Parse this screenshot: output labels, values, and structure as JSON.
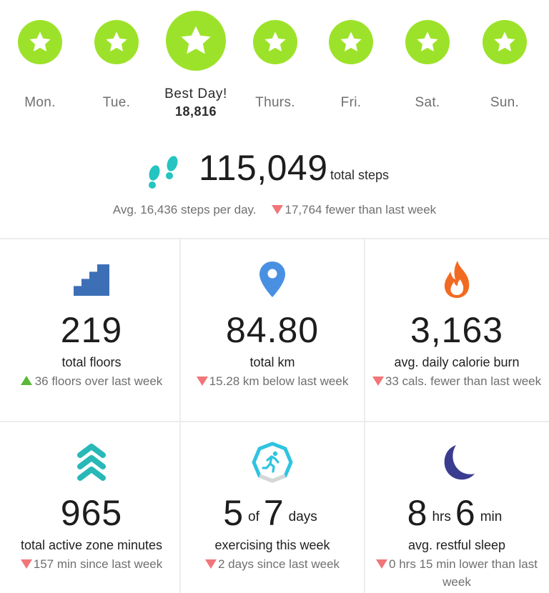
{
  "week": [
    {
      "name": "Mon.",
      "badge": "star-icon"
    },
    {
      "name": "Tue.",
      "badge": "star-icon"
    },
    {
      "name": "Best Day!",
      "value": "18,816",
      "badge": "star-icon",
      "best": true
    },
    {
      "name": "Thurs.",
      "badge": "star-icon"
    },
    {
      "name": "Fri.",
      "badge": "star-icon"
    },
    {
      "name": "Sat.",
      "badge": "star-icon"
    },
    {
      "name": "Sun.",
      "badge": "star-icon"
    }
  ],
  "colors": {
    "badge": "#9de22a",
    "down": "#f0767a",
    "up": "#5ab83a",
    "steps": "#24c4c0",
    "floors": "#3d6fb6",
    "location": "#4a90e2",
    "flame": "#f26a22",
    "azm": "#28b8b8",
    "exercise": "#2fc4e0",
    "sleep": "#3a3d8f"
  },
  "totals": {
    "steps": "115,049",
    "steps_label": "total steps",
    "avg": "Avg. 16,436 steps per day.",
    "diff": "17,764 fewer than last week"
  },
  "stats": {
    "floors": {
      "value": "219",
      "label": "total floors",
      "cmp": "36 floors over last week",
      "icon": "stairs-icon"
    },
    "km": {
      "value": "84.80",
      "label": "total km",
      "cmp": "15.28 km below last week",
      "icon": "location-pin-icon"
    },
    "calories": {
      "value": "3,163",
      "label": "avg. daily calorie burn",
      "cmp": "33 cals. fewer than last week",
      "icon": "flame-icon"
    },
    "azm": {
      "value": "965",
      "label": "total active zone minutes",
      "cmp": "157 min since last week",
      "icon": "chevrons-up-icon"
    },
    "exercise": {
      "value_a": "5",
      "of": "of",
      "value_b": "7",
      "unit": "days",
      "label": "exercising this week",
      "cmp": "2 days since last week",
      "icon": "runner-icon"
    },
    "sleep": {
      "hrs": "8",
      "hrs_unit": "hrs",
      "min": "6",
      "min_unit": "min",
      "label": "avg. restful sleep",
      "cmp": "0 hrs 15 min lower than last week",
      "icon": "moon-icon"
    }
  }
}
